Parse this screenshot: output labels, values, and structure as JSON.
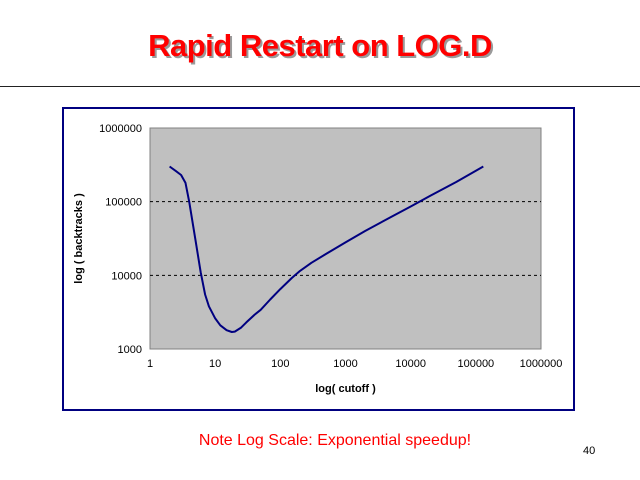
{
  "slide": {
    "title": "Rapid Restart on LOG.D",
    "footnote": "Note  Log  Scale: Exponential speedup!",
    "page_number": "40"
  },
  "colors": {
    "title": "#ff0000",
    "title_shadow": "#9a9a9a",
    "frame": "#000080",
    "plot_area": "#c0c0c0",
    "line": "#000080",
    "footnote": "#ff0000"
  },
  "chart_data": {
    "type": "line",
    "xlabel": "log( cutoff )",
    "ylabel": "log ( backtracks )",
    "x_scale": "log",
    "y_scale": "log",
    "xlim": [
      1,
      1000000
    ],
    "ylim": [
      1000,
      1000000
    ],
    "x_ticks": [
      "1",
      "10",
      "100",
      "1000",
      "10000",
      "100000",
      "1000000"
    ],
    "y_ticks": [
      "1000",
      "10000",
      "100000",
      "1000000"
    ],
    "grid": "horizontal dashed at 10000 and 100000",
    "legend": "none",
    "series": [
      {
        "x": [
          2,
          2.5,
          3,
          3.5,
          4,
          5,
          6,
          7,
          8,
          10,
          12,
          15,
          18,
          20,
          25,
          30,
          40,
          50,
          70,
          100,
          150,
          200,
          300,
          500,
          1000,
          2000,
          5000,
          10000,
          20000,
          50000,
          130000
        ],
        "y": [
          300000,
          260000,
          230000,
          180000,
          100000,
          30000,
          11000,
          5500,
          3800,
          2600,
          2100,
          1800,
          1700,
          1720,
          1950,
          2300,
          2900,
          3400,
          4700,
          6500,
          9200,
          11500,
          14800,
          19500,
          28000,
          40000,
          62000,
          86000,
          120000,
          185000,
          300000
        ]
      }
    ]
  }
}
